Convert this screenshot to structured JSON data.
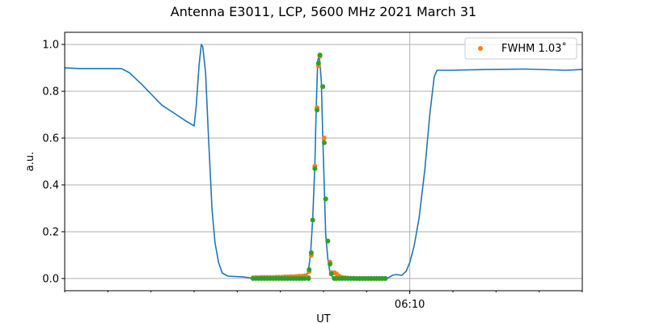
{
  "chart_data": {
    "type": "line",
    "title": "Antenna E3011, LCP, 5600 MHz 2021 March 31",
    "xlabel": "UT",
    "ylabel": "a.u.",
    "xlim": [
      "06:02:00",
      "06:14:00"
    ],
    "ylim": [
      -0.052,
      1.052
    ],
    "yticks": [
      "0.0",
      "0.2",
      "0.4",
      "0.6",
      "0.8",
      "1.0"
    ],
    "xticks_major": [
      "06:10"
    ],
    "xticks_minor": [
      "06:02",
      "06:03",
      "06:04",
      "06:05",
      "06:06",
      "06:07",
      "06:08",
      "06:09",
      "06:10",
      "06:11",
      "06:12",
      "06:13",
      "06:14"
    ],
    "grid": true,
    "legend": {
      "position": "top-right",
      "entries": [
        {
          "label": "FWHM 1.03˚",
          "color": "#ff7f0e"
        }
      ]
    },
    "series": [
      {
        "kind": "line",
        "color": "#1f77b4",
        "x": [
          "06:02:00",
          "06:02:22",
          "06:03:19",
          "06:03:30",
          "06:03:47",
          "06:04:04",
          "06:04:15",
          "06:04:32",
          "06:04:49",
          "06:05:00",
          "06:05:03",
          "06:05:07",
          "06:05:10",
          "06:05:12",
          "06:05:16",
          "06:05:20",
          "06:05:25",
          "06:05:29",
          "06:05:34",
          "06:05:39",
          "06:05:47",
          "06:06:08",
          "06:06:24",
          "06:07:35",
          "06:07:39",
          "06:07:42",
          "06:07:45",
          "06:07:48",
          "06:07:50",
          "06:07:52",
          "06:07:54",
          "06:07:57",
          "06:07:59",
          "06:08:01",
          "06:08:03",
          "06:08:06",
          "06:08:09",
          "06:08:13",
          "06:09:30",
          "06:09:36",
          "06:09:41",
          "06:09:49",
          "06:09:55",
          "06:10:00",
          "06:10:06",
          "06:10:13",
          "06:10:21",
          "06:10:28",
          "06:10:34",
          "06:10:38",
          "06:11:00",
          "06:11:45",
          "06:12:41",
          "06:13:37",
          "06:14:00"
        ],
        "y": [
          0.9,
          0.897,
          0.897,
          0.879,
          0.83,
          0.776,
          0.741,
          0.707,
          0.672,
          0.652,
          0.741,
          0.914,
          1.0,
          0.99,
          0.879,
          0.603,
          0.293,
          0.155,
          0.069,
          0.024,
          0.01,
          0.007,
          0.0,
          0.003,
          0.034,
          0.103,
          0.259,
          0.483,
          0.741,
          0.931,
          0.955,
          0.845,
          0.603,
          0.397,
          0.19,
          0.086,
          0.024,
          0.003,
          0.003,
          0.014,
          0.017,
          0.014,
          0.031,
          0.069,
          0.138,
          0.259,
          0.466,
          0.707,
          0.862,
          0.89,
          0.89,
          0.893,
          0.895,
          0.89,
          0.893
        ]
      },
      {
        "kind": "scatter",
        "color": "#ff7f0e",
        "name": "FWHM 1.03˚",
        "x": [
          "06:06:22",
          "06:06:26",
          "06:06:30",
          "06:06:34",
          "06:06:38",
          "06:06:42",
          "06:06:46",
          "06:06:50",
          "06:06:54",
          "06:06:58",
          "06:07:02",
          "06:07:06",
          "06:07:10",
          "06:07:14",
          "06:07:18",
          "06:07:22",
          "06:07:26",
          "06:07:30",
          "06:07:34",
          "06:07:39",
          "06:07:40",
          "06:07:43",
          "06:07:45",
          "06:07:48",
          "06:07:51",
          "06:07:53",
          "06:07:55",
          "06:07:59",
          "06:08:01",
          "06:08:03",
          "06:08:06",
          "06:08:09",
          "06:08:11",
          "06:08:15",
          "06:08:18",
          "06:08:22",
          "06:08:26",
          "06:08:30",
          "06:08:34",
          "06:08:38",
          "06:08:42",
          "06:08:46",
          "06:08:50",
          "06:08:54",
          "06:08:58",
          "06:09:02",
          "06:09:06",
          "06:09:10",
          "06:09:14",
          "06:09:18",
          "06:09:22",
          "06:09:26"
        ],
        "y": [
          0.003,
          0.004,
          0.004,
          0.005,
          0.005,
          0.005,
          0.005,
          0.005,
          0.006,
          0.006,
          0.006,
          0.007,
          0.007,
          0.008,
          0.008,
          0.009,
          0.01,
          0.01,
          0.012,
          0.005,
          0.03,
          0.1,
          0.25,
          0.48,
          0.73,
          0.91,
          0.95,
          0.82,
          0.6,
          0.34,
          0.16,
          0.07,
          0.025,
          0.025,
          0.02,
          0.01,
          0.005,
          0.003,
          0.002,
          0.001,
          0.001,
          0.0,
          0.0,
          0.0,
          0.0,
          0.0,
          0.0,
          0.0,
          0.0,
          0.0,
          0.0,
          0.0
        ]
      },
      {
        "kind": "scatter",
        "color": "#2ca02c",
        "x": [
          "06:06:22",
          "06:06:26",
          "06:06:30",
          "06:06:34",
          "06:06:38",
          "06:06:42",
          "06:06:46",
          "06:06:50",
          "06:06:54",
          "06:06:58",
          "06:07:02",
          "06:07:06",
          "06:07:10",
          "06:07:14",
          "06:07:18",
          "06:07:22",
          "06:07:26",
          "06:07:30",
          "06:07:34",
          "06:07:39",
          "06:07:40",
          "06:07:43",
          "06:07:45",
          "06:07:48",
          "06:07:51",
          "06:07:53",
          "06:07:55",
          "06:07:59",
          "06:08:01",
          "06:08:03",
          "06:08:06",
          "06:08:09",
          "06:08:11",
          "06:08:15",
          "06:08:18",
          "06:08:22",
          "06:08:26",
          "06:08:30",
          "06:08:34",
          "06:08:38",
          "06:08:42",
          "06:08:46",
          "06:08:50",
          "06:08:54",
          "06:08:58",
          "06:09:02",
          "06:09:06",
          "06:09:10",
          "06:09:14",
          "06:09:18",
          "06:09:22",
          "06:09:26"
        ],
        "y": [
          0,
          0,
          0,
          0,
          0,
          0,
          0,
          0,
          0,
          0,
          0,
          0,
          0,
          0,
          0,
          0,
          0,
          0,
          0,
          0.0,
          0.038,
          0.11,
          0.25,
          0.47,
          0.72,
          0.92,
          0.955,
          0.82,
          0.58,
          0.34,
          0.16,
          0.062,
          0.02,
          0.0,
          0,
          0,
          0,
          0,
          0,
          0,
          0,
          0,
          0,
          0,
          0,
          0,
          0,
          0,
          0,
          0,
          0,
          0
        ]
      }
    ]
  }
}
